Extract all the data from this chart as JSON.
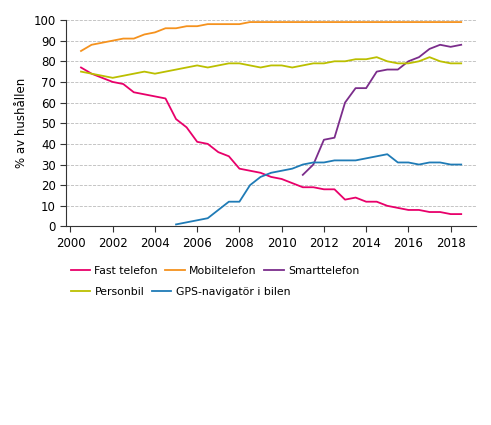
{
  "ylabel": "% av hushållen",
  "xlim": [
    1999.8,
    2019.2
  ],
  "ylim": [
    0,
    100
  ],
  "yticks": [
    0,
    10,
    20,
    30,
    40,
    50,
    60,
    70,
    80,
    90,
    100
  ],
  "xticks": [
    2000,
    2002,
    2004,
    2006,
    2008,
    2010,
    2012,
    2014,
    2016,
    2018
  ],
  "series": {
    "fast_telefon": {
      "label": "Fast telefon",
      "color": "#E8006A",
      "x": [
        2000.5,
        2001.0,
        2001.5,
        2002.0,
        2002.5,
        2003.0,
        2003.5,
        2004.0,
        2004.5,
        2005.0,
        2005.5,
        2006.0,
        2006.5,
        2007.0,
        2007.5,
        2008.0,
        2008.5,
        2009.0,
        2009.5,
        2010.0,
        2010.5,
        2011.0,
        2011.5,
        2012.0,
        2012.5,
        2013.0,
        2013.5,
        2014.0,
        2014.5,
        2015.0,
        2015.5,
        2016.0,
        2016.5,
        2017.0,
        2017.5,
        2018.0,
        2018.5
      ],
      "y": [
        77,
        74,
        72,
        70,
        69,
        65,
        64,
        63,
        62,
        52,
        48,
        41,
        40,
        36,
        34,
        28,
        27,
        26,
        24,
        23,
        21,
        19,
        19,
        18,
        18,
        13,
        14,
        12,
        12,
        10,
        9,
        8,
        8,
        7,
        7,
        6,
        6
      ]
    },
    "mobiltelefon": {
      "label": "Mobiltelefon",
      "color": "#F5921E",
      "x": [
        2000.5,
        2001.0,
        2001.5,
        2002.0,
        2002.5,
        2003.0,
        2003.5,
        2004.0,
        2004.5,
        2005.0,
        2005.5,
        2006.0,
        2006.5,
        2007.0,
        2007.5,
        2008.0,
        2008.5,
        2009.0,
        2009.5,
        2010.0,
        2010.5,
        2011.0,
        2011.5,
        2012.0,
        2012.5,
        2013.0,
        2013.5,
        2014.0,
        2014.5,
        2015.0,
        2015.5,
        2016.0,
        2016.5,
        2017.0,
        2017.5,
        2018.0,
        2018.5
      ],
      "y": [
        85,
        88,
        89,
        90,
        91,
        91,
        93,
        94,
        96,
        96,
        97,
        97,
        98,
        98,
        98,
        98,
        99,
        99,
        99,
        99,
        99,
        99,
        99,
        99,
        99,
        99,
        99,
        99,
        99,
        99,
        99,
        99,
        99,
        99,
        99,
        99,
        99
      ]
    },
    "smarttelefon": {
      "label": "Smarttelefon",
      "color": "#7B2D8B",
      "x": [
        2011.0,
        2011.5,
        2012.0,
        2012.5,
        2013.0,
        2013.5,
        2014.0,
        2014.5,
        2015.0,
        2015.5,
        2016.0,
        2016.5,
        2017.0,
        2017.5,
        2018.0,
        2018.5
      ],
      "y": [
        25,
        30,
        42,
        43,
        60,
        67,
        67,
        75,
        76,
        76,
        80,
        82,
        86,
        88,
        87,
        88
      ]
    },
    "personbil": {
      "label": "Personbil",
      "color": "#BBBF00",
      "x": [
        2000.5,
        2001.0,
        2001.5,
        2002.0,
        2002.5,
        2003.0,
        2003.5,
        2004.0,
        2004.5,
        2005.0,
        2005.5,
        2006.0,
        2006.5,
        2007.0,
        2007.5,
        2008.0,
        2008.5,
        2009.0,
        2009.5,
        2010.0,
        2010.5,
        2011.0,
        2011.5,
        2012.0,
        2012.5,
        2013.0,
        2013.5,
        2014.0,
        2014.5,
        2015.0,
        2015.5,
        2016.0,
        2016.5,
        2017.0,
        2017.5,
        2018.0,
        2018.5
      ],
      "y": [
        75,
        74,
        73,
        72,
        73,
        74,
        75,
        74,
        75,
        76,
        77,
        78,
        77,
        78,
        79,
        79,
        78,
        77,
        78,
        78,
        77,
        78,
        79,
        79,
        80,
        80,
        81,
        81,
        82,
        80,
        79,
        79,
        80,
        82,
        80,
        79,
        79
      ]
    },
    "gps": {
      "label": "GPS-navigatör i bilen",
      "color": "#1F7BB6",
      "x": [
        2005.0,
        2005.5,
        2006.0,
        2006.5,
        2007.0,
        2007.5,
        2008.0,
        2008.5,
        2009.0,
        2009.5,
        2010.0,
        2010.5,
        2011.0,
        2011.5,
        2012.0,
        2012.5,
        2013.0,
        2013.5,
        2014.0,
        2014.5,
        2015.0,
        2015.5,
        2016.0,
        2016.5,
        2017.0,
        2017.5,
        2018.0,
        2018.5
      ],
      "y": [
        1,
        2,
        3,
        4,
        8,
        12,
        12,
        20,
        24,
        26,
        27,
        28,
        30,
        31,
        31,
        32,
        32,
        32,
        33,
        34,
        35,
        31,
        31,
        30,
        31,
        31,
        30,
        30
      ]
    }
  },
  "plot_order": [
    "fast_telefon",
    "mobiltelefon",
    "smarttelefon",
    "personbil",
    "gps"
  ],
  "legend_row1": [
    "fast_telefon",
    "mobiltelefon",
    "smarttelefon"
  ],
  "legend_row2": [
    "personbil",
    "gps"
  ]
}
